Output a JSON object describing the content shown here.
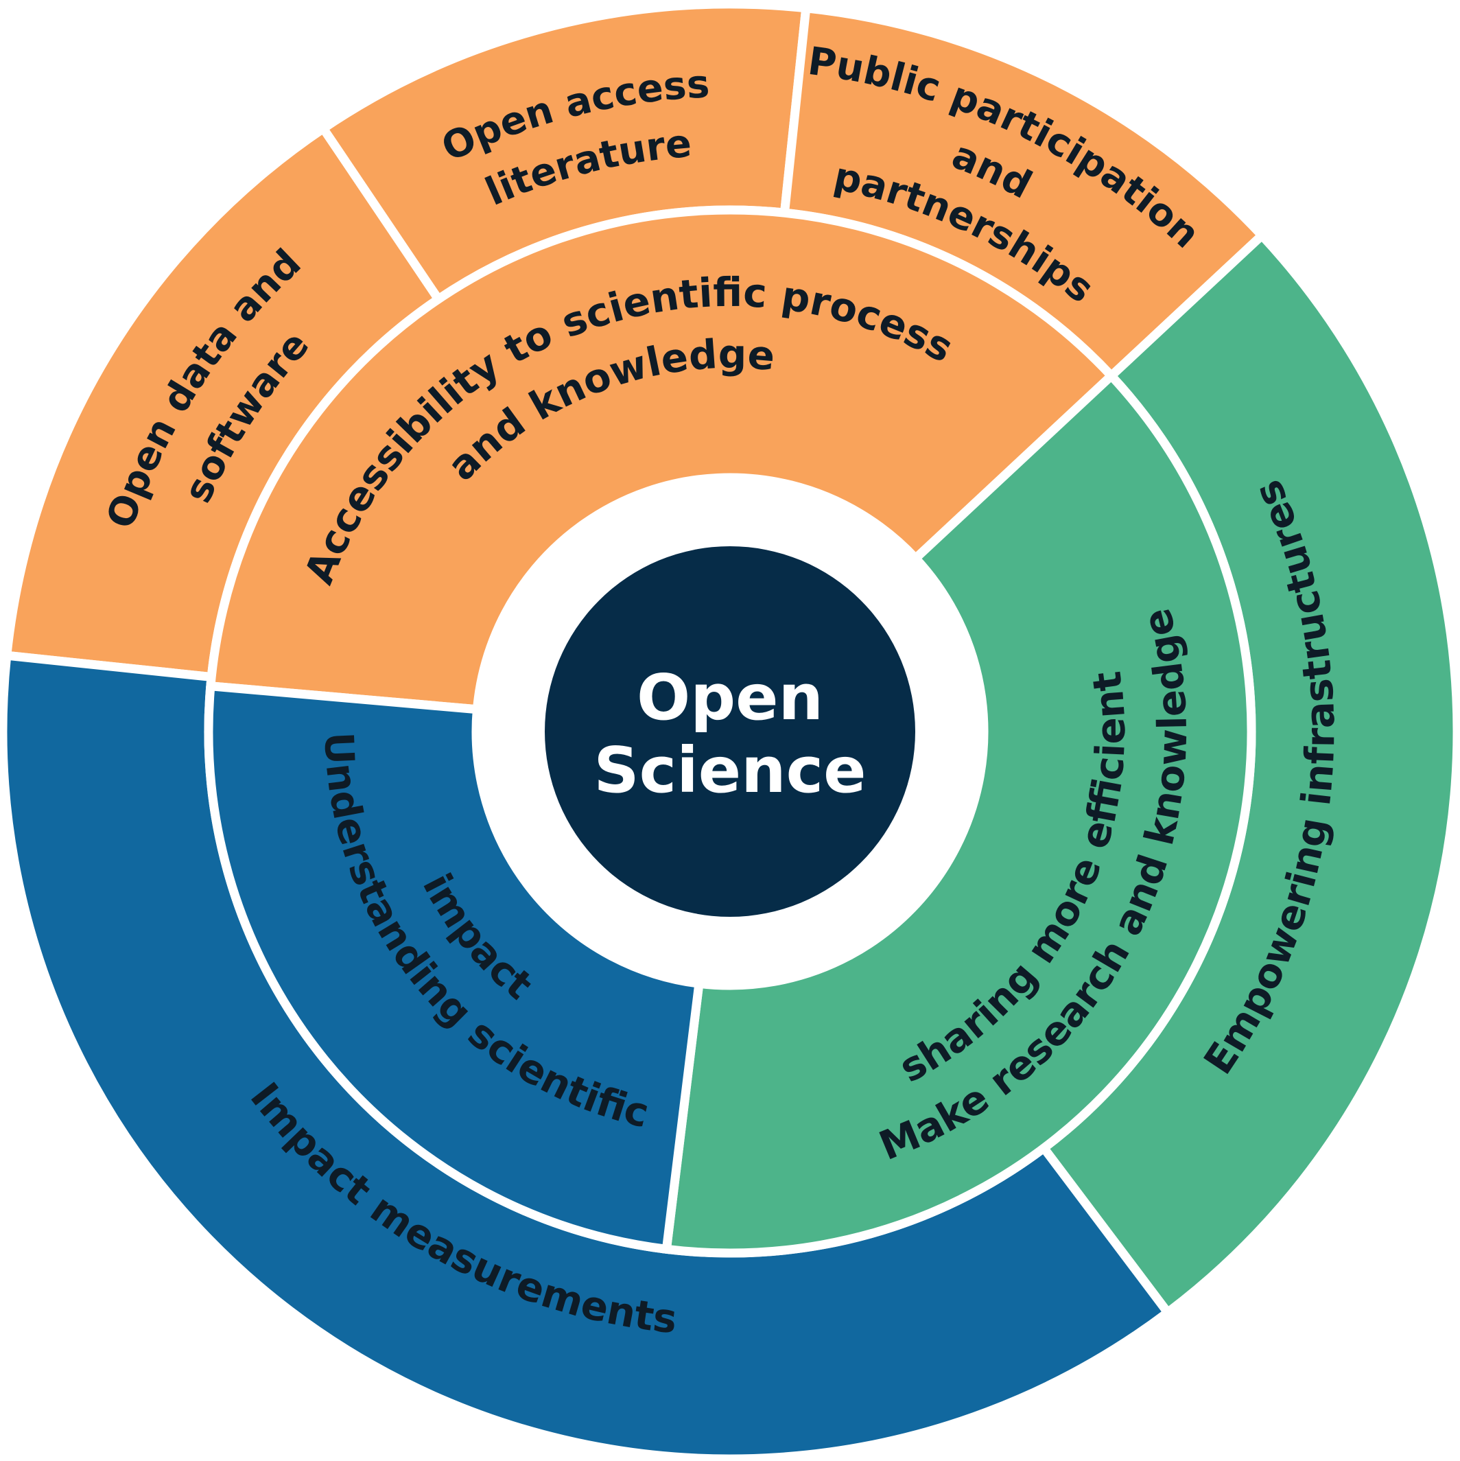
{
  "center": {
    "line1": "Open",
    "line2": "Science"
  },
  "colors": {
    "orange": "#f9a35b",
    "green": "#4db48a",
    "blue": "#11689f",
    "navy": "#062c48",
    "separator": "#ffffff",
    "text": "#0e1b26",
    "center_text": "#ffffff"
  },
  "inner_ring": [
    {
      "color": "orange",
      "lines": [
        "Accessibility to scientific process",
        "and knowledge"
      ]
    },
    {
      "color": "green",
      "lines": [
        "Make research and knowledge",
        "sharing more efficient"
      ]
    },
    {
      "color": "blue",
      "lines": [
        "Understanding scientific",
        "impact"
      ]
    }
  ],
  "outer_ring": [
    {
      "color": "orange",
      "lines": [
        "Open data and",
        "software"
      ]
    },
    {
      "color": "orange",
      "lines": [
        "Open access",
        "literature"
      ]
    },
    {
      "color": "orange",
      "lines": [
        "Public participation",
        "and",
        "partnerships"
      ]
    },
    {
      "color": "green",
      "lines": [
        "Empowering infrastructures"
      ]
    },
    {
      "color": "blue",
      "lines": [
        "Impact measurements"
      ]
    }
  ]
}
